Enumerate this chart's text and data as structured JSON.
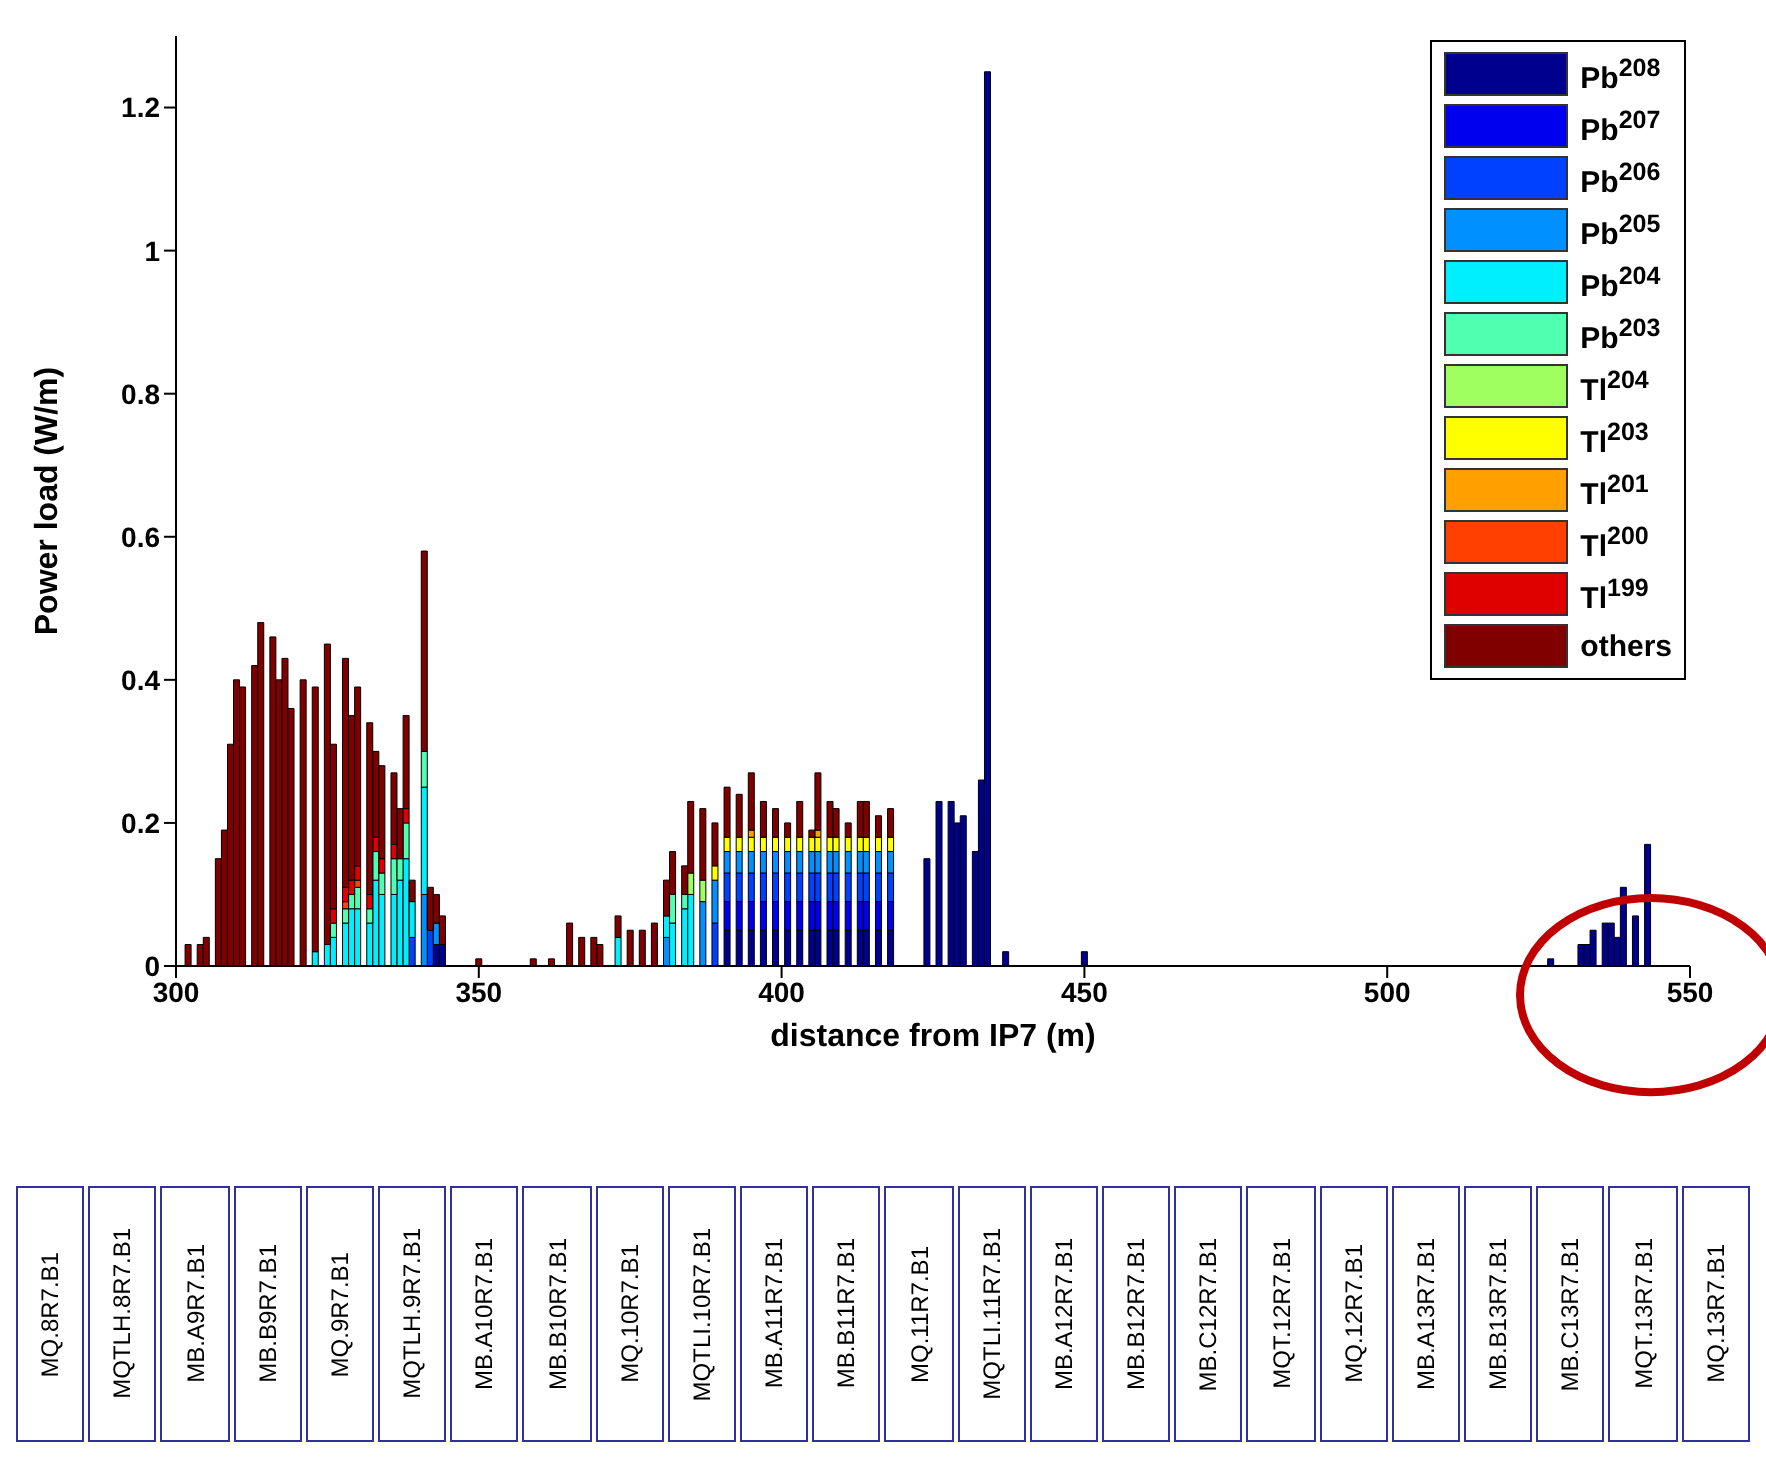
{
  "chart_data": {
    "type": "bar",
    "stacked": true,
    "xlabel": "distance from IP7 (m)",
    "ylabel": "Power load (W/m)",
    "xlim": [
      300,
      550
    ],
    "xticks": [
      300,
      350,
      400,
      450,
      500,
      550
    ],
    "ylim": [
      0,
      1.3
    ],
    "yticks": [
      0,
      0.2,
      0.4,
      0.6,
      0.8,
      1,
      1.2
    ],
    "legend": "top right",
    "x": [
      302,
      304,
      305,
      307,
      308,
      309,
      310,
      311,
      313,
      314,
      316,
      317,
      318,
      319,
      321,
      323,
      325,
      326,
      328,
      329,
      330,
      332,
      333,
      334,
      336,
      337,
      338,
      339,
      341,
      342,
      343,
      344,
      350,
      359,
      362,
      365,
      367,
      369,
      370,
      373,
      375,
      377,
      379,
      381,
      382,
      384,
      385,
      387,
      389,
      391,
      393,
      395,
      397,
      399,
      401,
      403,
      405,
      406,
      408,
      409,
      411,
      413,
      414,
      416,
      418,
      424,
      426,
      428,
      429,
      430,
      432,
      433,
      434,
      437,
      450,
      527,
      532,
      533,
      534,
      536,
      537,
      538,
      539,
      541,
      543
    ],
    "series": [
      {
        "name": "Pb$^{208}$",
        "color": "#00008f",
        "values": [
          null,
          null,
          null,
          null,
          null,
          null,
          null,
          null,
          null,
          null,
          null,
          null,
          null,
          null,
          null,
          null,
          null,
          null,
          null,
          null,
          null,
          null,
          null,
          null,
          null,
          null,
          null,
          null,
          null,
          null,
          0.03,
          0.03,
          null,
          null,
          null,
          null,
          null,
          null,
          null,
          null,
          null,
          null,
          null,
          null,
          null,
          null,
          null,
          null,
          null,
          0.05,
          0.05,
          0.05,
          0.05,
          0.05,
          0.05,
          0.05,
          0.05,
          0.05,
          0.05,
          0.05,
          0.05,
          0.05,
          0.05,
          0.05,
          0.05,
          0.15,
          0.23,
          0.23,
          0.2,
          0.21,
          0.16,
          0.26,
          1.25,
          0.02,
          0.02,
          0.01,
          0.03,
          0.03,
          0.05,
          0.06,
          0.06,
          0.04,
          0.11,
          0.07,
          0.17
        ]
      },
      {
        "name": "Pb$^{207}$",
        "color": "#0000ef",
        "values": [
          null,
          null,
          null,
          null,
          null,
          null,
          null,
          null,
          null,
          null,
          null,
          null,
          null,
          null,
          null,
          null,
          null,
          null,
          null,
          null,
          null,
          null,
          null,
          null,
          null,
          null,
          null,
          null,
          null,
          null,
          null,
          null,
          null,
          null,
          null,
          null,
          null,
          null,
          null,
          null,
          null,
          null,
          null,
          null,
          null,
          null,
          null,
          null,
          null,
          0.04,
          0.04,
          0.04,
          0.04,
          0.04,
          0.04,
          0.04,
          0.04,
          0.04,
          0.04,
          0.04,
          0.04,
          0.04,
          0.04,
          0.04,
          0.04,
          null,
          null,
          null,
          null,
          null,
          null,
          null,
          null,
          null,
          null,
          null,
          null,
          null,
          null,
          null,
          null,
          null,
          null,
          null,
          null
        ]
      },
      {
        "name": "Pb$^{206}$",
        "color": "#0040ff",
        "values": [
          null,
          null,
          null,
          null,
          null,
          null,
          null,
          null,
          null,
          null,
          null,
          null,
          null,
          null,
          null,
          null,
          null,
          null,
          null,
          null,
          null,
          null,
          null,
          null,
          null,
          null,
          null,
          0.04,
          null,
          0.05,
          null,
          null,
          null,
          null,
          null,
          null,
          null,
          null,
          null,
          null,
          null,
          null,
          null,
          null,
          null,
          null,
          null,
          null,
          0.06,
          0.04,
          0.04,
          0.04,
          0.04,
          0.04,
          0.04,
          0.04,
          0.04,
          0.04,
          0.04,
          0.04,
          0.04,
          0.04,
          0.04,
          0.04,
          0.04,
          null,
          null,
          null,
          null,
          null,
          null,
          null,
          null,
          null,
          null,
          null,
          null,
          null,
          null,
          null,
          null,
          null,
          null,
          null,
          null
        ]
      },
      {
        "name": "Pb$^{205}$",
        "color": "#0090ff",
        "values": [
          null,
          null,
          null,
          null,
          null,
          null,
          null,
          null,
          null,
          null,
          null,
          null,
          null,
          null,
          null,
          null,
          null,
          null,
          null,
          null,
          null,
          null,
          null,
          null,
          null,
          null,
          null,
          null,
          0.1,
          null,
          0.03,
          null,
          null,
          null,
          null,
          null,
          null,
          null,
          null,
          null,
          null,
          null,
          null,
          0.04,
          null,
          null,
          null,
          0.09,
          0.06,
          0.03,
          0.03,
          0.03,
          0.03,
          0.03,
          0.03,
          0.03,
          0.03,
          0.03,
          0.03,
          0.03,
          0.03,
          0.03,
          0.03,
          0.03,
          0.03,
          null,
          null,
          null,
          null,
          null,
          null,
          null,
          null,
          null,
          null,
          null,
          null,
          null,
          null,
          null,
          null,
          null,
          null,
          null,
          null
        ]
      },
      {
        "name": "Pb$^{204}$",
        "color": "#00efff",
        "values": [
          null,
          null,
          null,
          null,
          null,
          null,
          null,
          null,
          null,
          null,
          null,
          null,
          null,
          null,
          null,
          0.02,
          0.03,
          0.04,
          0.06,
          0.08,
          0.08,
          0.06,
          0.12,
          0.1,
          0.1,
          0.12,
          0.15,
          0.05,
          0.15,
          null,
          null,
          null,
          null,
          null,
          null,
          null,
          null,
          null,
          null,
          0.04,
          null,
          null,
          null,
          0.03,
          0.06,
          0.08,
          0.1,
          null,
          null,
          null,
          null,
          null,
          null,
          null,
          null,
          null,
          null,
          null,
          null,
          null,
          null,
          null,
          null,
          null,
          null,
          null,
          null,
          null,
          null,
          null,
          null,
          null,
          null,
          null,
          null,
          null,
          null,
          null,
          null,
          null,
          null,
          null,
          null,
          null,
          null
        ]
      },
      {
        "name": "Pb$^{203}$",
        "color": "#50ffaf",
        "values": [
          null,
          null,
          null,
          null,
          null,
          null,
          null,
          null,
          null,
          null,
          null,
          null,
          null,
          null,
          null,
          null,
          null,
          0.02,
          0.02,
          0.02,
          0.03,
          0.02,
          0.04,
          0.03,
          0.05,
          0.03,
          0.05,
          null,
          0.05,
          null,
          null,
          null,
          null,
          null,
          null,
          null,
          null,
          null,
          null,
          null,
          null,
          null,
          null,
          null,
          0.04,
          0.02,
          null,
          null,
          null,
          null,
          null,
          null,
          null,
          null,
          null,
          null,
          null,
          null,
          null,
          null,
          null,
          null,
          null,
          null,
          null,
          null,
          null,
          null,
          null,
          null,
          null,
          null,
          null,
          null,
          null,
          null,
          null,
          null,
          null,
          null,
          null,
          null,
          null,
          null,
          null
        ]
      },
      {
        "name": "Tl$^{204}$",
        "color": "#9fff60",
        "values": [
          null,
          null,
          null,
          null,
          null,
          null,
          null,
          null,
          null,
          null,
          null,
          null,
          null,
          null,
          null,
          null,
          null,
          null,
          null,
          null,
          null,
          null,
          null,
          null,
          null,
          null,
          null,
          null,
          null,
          null,
          null,
          null,
          null,
          null,
          null,
          null,
          null,
          null,
          null,
          null,
          null,
          null,
          null,
          null,
          null,
          null,
          0.03,
          0.03,
          null,
          null,
          null,
          null,
          null,
          null,
          null,
          null,
          null,
          null,
          null,
          null,
          null,
          null,
          null,
          null,
          null,
          null,
          null,
          null,
          null,
          null,
          null,
          null,
          null,
          null,
          null,
          null,
          null,
          null,
          null,
          null,
          null,
          null,
          null,
          null,
          null
        ]
      },
      {
        "name": "Tl$^{203}$",
        "color": "#ffff00",
        "values": [
          null,
          null,
          null,
          null,
          null,
          null,
          null,
          null,
          null,
          null,
          null,
          null,
          null,
          null,
          null,
          null,
          null,
          null,
          null,
          null,
          null,
          null,
          null,
          null,
          null,
          null,
          null,
          null,
          null,
          null,
          null,
          null,
          null,
          null,
          null,
          null,
          null,
          null,
          null,
          null,
          null,
          null,
          null,
          null,
          null,
          null,
          null,
          null,
          0.02,
          0.02,
          0.02,
          0.02,
          0.02,
          0.02,
          0.02,
          0.02,
          0.02,
          0.02,
          0.02,
          0.02,
          0.02,
          0.02,
          0.02,
          0.02,
          0.02,
          null,
          null,
          null,
          null,
          null,
          null,
          null,
          null,
          null,
          null,
          null,
          null,
          null,
          null,
          null,
          null,
          null,
          null,
          null,
          null
        ]
      },
      {
        "name": "Tl$^{201}$",
        "color": "#ff9f00",
        "values": [
          null,
          null,
          null,
          null,
          null,
          null,
          null,
          null,
          null,
          null,
          null,
          null,
          null,
          null,
          null,
          null,
          null,
          null,
          null,
          null,
          null,
          null,
          null,
          null,
          null,
          null,
          null,
          null,
          null,
          null,
          null,
          null,
          null,
          null,
          null,
          null,
          null,
          null,
          null,
          null,
          null,
          null,
          null,
          null,
          null,
          null,
          null,
          null,
          null,
          null,
          null,
          0.01,
          null,
          null,
          null,
          null,
          null,
          0.01,
          null,
          null,
          null,
          null,
          null,
          null,
          null,
          null,
          null,
          null,
          null,
          null,
          null,
          null,
          null,
          null,
          null,
          null,
          null,
          null,
          null,
          null,
          null,
          null,
          null,
          null,
          null
        ]
      },
      {
        "name": "Tl$^{200}$",
        "color": "#ff4000",
        "values": [
          null,
          null,
          null,
          null,
          null,
          null,
          null,
          null,
          null,
          null,
          null,
          null,
          null,
          null,
          null,
          null,
          null,
          null,
          0.01,
          null,
          0.01,
          null,
          null,
          null,
          null,
          null,
          null,
          null,
          null,
          null,
          null,
          null,
          null,
          null,
          null,
          null,
          null,
          null,
          null,
          null,
          null,
          null,
          null,
          null,
          null,
          null,
          null,
          null,
          null,
          null,
          null,
          null,
          null,
          null,
          null,
          null,
          null,
          null,
          null,
          null,
          null,
          null,
          null,
          null,
          null,
          null,
          null,
          null,
          null,
          null,
          null,
          null,
          null,
          null,
          null,
          null,
          null,
          null,
          null,
          null,
          null,
          null,
          null,
          null,
          null
        ]
      },
      {
        "name": "Tl$^{199}$",
        "color": "#df0000",
        "values": [
          null,
          null,
          null,
          null,
          null,
          null,
          null,
          null,
          null,
          null,
          null,
          null,
          null,
          null,
          null,
          null,
          null,
          0.02,
          0.02,
          0.02,
          0.02,
          0.02,
          0.02,
          0.02,
          0.02,
          null,
          0.02,
          null,
          null,
          null,
          null,
          null,
          null,
          null,
          null,
          null,
          null,
          null,
          null,
          null,
          null,
          null,
          null,
          null,
          null,
          null,
          null,
          null,
          null,
          null,
          null,
          null,
          null,
          null,
          null,
          null,
          null,
          null,
          null,
          null,
          null,
          null,
          null,
          null,
          null,
          null,
          null,
          null,
          null,
          null,
          null,
          null,
          null,
          null,
          null,
          null,
          null,
          null,
          null,
          null,
          null,
          null,
          null,
          null,
          null
        ]
      },
      {
        "name": "others",
        "color": "#800000",
        "values": [
          0.03,
          0.03,
          0.04,
          0.15,
          0.19,
          0.31,
          0.4,
          0.39,
          0.42,
          0.48,
          0.46,
          0.4,
          0.43,
          0.36,
          0.4,
          0.37,
          0.42,
          0.23,
          0.32,
          0.23,
          0.25,
          0.24,
          0.12,
          0.13,
          0.1,
          0.07,
          0.13,
          0.03,
          0.28,
          0.06,
          0.04,
          0.04,
          0.01,
          0.01,
          0.01,
          0.06,
          0.04,
          0.04,
          0.03,
          0.03,
          0.05,
          0.05,
          0.06,
          0.05,
          0.06,
          0.04,
          0.1,
          0.1,
          0.06,
          0.07,
          0.06,
          0.08,
          0.05,
          0.04,
          0.02,
          0.05,
          0.01,
          0.08,
          0.05,
          0.04,
          0.02,
          0.05,
          0.05,
          0.03,
          0.04,
          null,
          null,
          null,
          null,
          null,
          null,
          null,
          null,
          null,
          null,
          null,
          null,
          null,
          null,
          null,
          null,
          null,
          null,
          null,
          null
        ]
      }
    ],
    "annotations": [
      "MQ.8R7.B1",
      "MQTLH.8R7.B1",
      "MB.A9R7.B1",
      "MB.B9R7.B1",
      "MQ.9R7.B1",
      "MQTLH.9R7.B1",
      "MB.A10R7.B1",
      "MB.B10R7.B1",
      "MQ.10R7.B1",
      "MQTLI.10R7.B1",
      "MB.A11R7.B1",
      "MB.B11R7.B1",
      "MQ.11R7.B1",
      "MQTLI.11R7.B1",
      "MB.A12R7.B1",
      "MB.B12R7.B1",
      "MB.C12R7.B1",
      "MQT.12R7.B1",
      "MQ.12R7.B1",
      "MB.A13R7.B1",
      "MB.B13R7.B1",
      "MB.C13R7.B1",
      "MQT.13R7.B1",
      "MQ.13R7.B1"
    ]
  }
}
